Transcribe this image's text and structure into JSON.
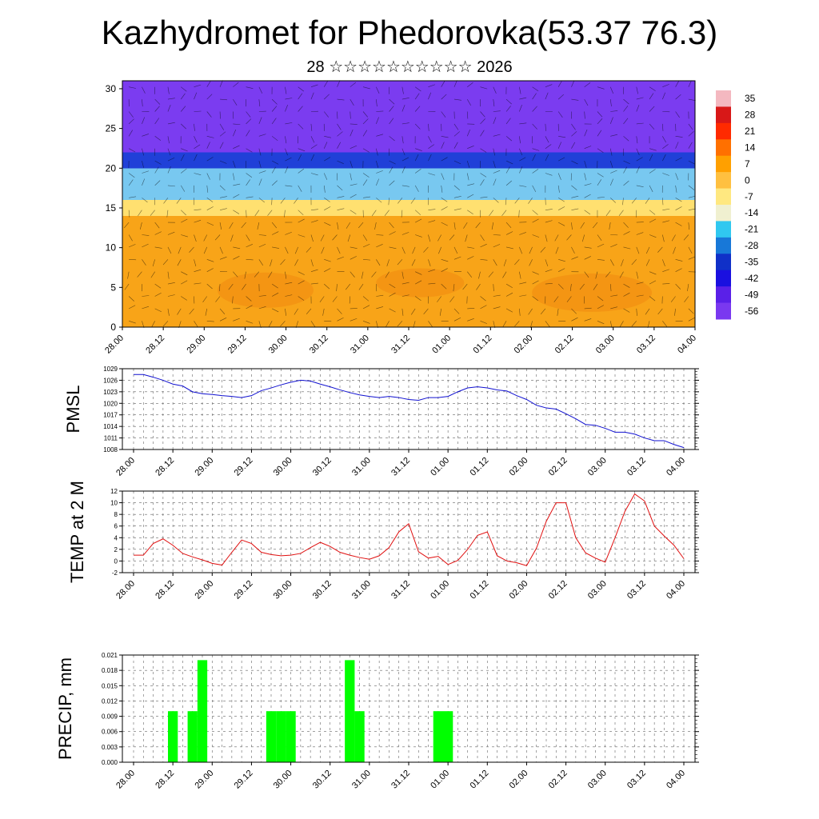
{
  "header": {
    "title": "Kazhydromet for Phedorovka(53.37 76.3)",
    "subtitle": "28 ☆☆☆☆☆☆☆☆☆☆ 2026"
  },
  "chart_data": [
    {
      "type": "heatmap",
      "name": "vertical cross-section",
      "ylim": [
        0,
        31
      ],
      "yticks": [
        0,
        5,
        10,
        15,
        20,
        25,
        30
      ],
      "xticks": [
        "28.00",
        "28.12",
        "29.00",
        "29.12",
        "30.00",
        "30.12",
        "31.00",
        "31.12",
        "01.00",
        "01.12",
        "02.00",
        "02.12",
        "03.00",
        "03.12",
        "04.00"
      ],
      "colorbar_labels": [
        "35",
        "28",
        "21",
        "14",
        "7",
        "0",
        "-7",
        "-14",
        "-21",
        "-28",
        "-35",
        "-42",
        "-49",
        "-56"
      ],
      "colorbar_colors": [
        "#f4b8c0",
        "#d81818",
        "#ff2a00",
        "#ff7000",
        "#ffa000",
        "#ffc040",
        "#ffe880",
        "#f0f0d0",
        "#30c8f0",
        "#1878d8",
        "#1030c8",
        "#1a10e0",
        "#5a20e8",
        "#7a38f0"
      ],
      "layers": [
        {
          "ymin": 0,
          "ymax": 14,
          "color": "#f8a418"
        },
        {
          "ymin": 14,
          "ymax": 16,
          "color": "#ffe070"
        },
        {
          "ymin": 16,
          "ymax": 20,
          "color": "#78c8f0"
        },
        {
          "ymin": 20,
          "ymax": 22,
          "color": "#2040d8"
        },
        {
          "ymin": 22,
          "ymax": 31,
          "color": "#7b3cf0"
        }
      ],
      "grid": true
    },
    {
      "type": "line",
      "name": "PMSL",
      "ylabel": "PMSL",
      "ylim": [
        1008,
        1029
      ],
      "yticks": [
        1008,
        1011,
        1014,
        1017,
        1020,
        1023,
        1026,
        1029
      ],
      "xticks": [
        "28.00",
        "28.12",
        "29.00",
        "29.12",
        "30.00",
        "30.12",
        "31.00",
        "31.12",
        "01.00",
        "01.12",
        "02.00",
        "02.12",
        "03.00",
        "03.12",
        "04.00"
      ],
      "x": [
        0,
        1,
        2,
        3,
        4,
        5,
        6,
        7,
        8,
        9,
        10,
        11,
        12,
        13,
        14,
        15,
        16,
        17,
        18,
        19,
        20,
        21,
        22,
        23,
        24,
        25,
        26,
        27,
        28,
        29,
        30,
        31,
        32,
        33,
        34,
        35,
        36,
        37,
        38,
        39,
        40,
        41,
        42,
        43,
        44,
        45,
        46,
        47,
        48,
        49,
        50,
        51,
        52,
        53,
        54,
        55,
        56
      ],
      "values": [
        1027.5,
        1027.5,
        1026.8,
        1026,
        1025,
        1024.5,
        1023,
        1022.5,
        1022.3,
        1022,
        1021.8,
        1021.5,
        1022,
        1023.3,
        1024,
        1024.8,
        1025.5,
        1026,
        1025.8,
        1025,
        1024.3,
        1023.5,
        1022.8,
        1022.2,
        1021.8,
        1021.5,
        1021.8,
        1021.5,
        1021,
        1020.8,
        1021.5,
        1021.5,
        1021.8,
        1023,
        1024,
        1024.3,
        1024,
        1023.5,
        1023.2,
        1022,
        1021,
        1019.5,
        1018.8,
        1018.5,
        1017.3,
        1016,
        1014.5,
        1014.3,
        1013.5,
        1012.5,
        1012.5,
        1012,
        1011,
        1010.3,
        1010.3,
        1009.3,
        1008.5
      ],
      "color": "#1010d0",
      "grid": true
    },
    {
      "type": "line",
      "name": "TEMP at 2 M",
      "ylabel": "TEMP at 2 M",
      "ylim": [
        -2,
        12
      ],
      "yticks": [
        -2,
        0,
        2,
        4,
        6,
        8,
        10,
        12
      ],
      "xticks": [
        "28.00",
        "28.12",
        "29.00",
        "29.12",
        "30.00",
        "30.12",
        "31.00",
        "31.12",
        "01.00",
        "01.12",
        "02.00",
        "02.12",
        "03.00",
        "03.12",
        "04.00"
      ],
      "x": [
        0,
        1,
        2,
        3,
        4,
        5,
        6,
        7,
        8,
        9,
        10,
        11,
        12,
        13,
        14,
        15,
        16,
        17,
        18,
        19,
        20,
        21,
        22,
        23,
        24,
        25,
        26,
        27,
        28,
        29,
        30,
        31,
        32,
        33,
        34,
        35,
        36,
        37,
        38,
        39,
        40,
        41,
        42,
        43,
        44,
        45,
        46,
        47,
        48,
        49,
        50,
        51,
        52,
        53,
        54,
        55,
        56
      ],
      "values": [
        1,
        1,
        3,
        3.8,
        2.7,
        1.3,
        0.7,
        0.2,
        -0.4,
        -0.7,
        1.5,
        3.6,
        3,
        1.5,
        1.1,
        0.9,
        1,
        1.3,
        2.3,
        3.2,
        2.5,
        1.5,
        1,
        0.6,
        0.3,
        0.9,
        2.3,
        5,
        6.4,
        1.6,
        0.5,
        0.8,
        -0.6,
        0.1,
        2,
        4.4,
        5,
        0.9,
        0,
        -0.3,
        -0.8,
        2.2,
        6.8,
        10,
        10,
        4,
        1.4,
        0.5,
        -0.2,
        4,
        8.5,
        11.5,
        10.3,
        6,
        4.3,
        2.7,
        0.4
      ],
      "color": "#e01010",
      "grid": true
    },
    {
      "type": "bar",
      "name": "PRECIP, mm",
      "ylabel": "PRECIP, mm",
      "ylim": [
        0,
        0.021
      ],
      "yticks": [
        "0.000",
        "0.003",
        "0.006",
        "0.009",
        "0.012",
        "0.015",
        "0.018",
        "0.021"
      ],
      "xticks": [
        "28.00",
        "28.12",
        "29.00",
        "29.12",
        "30.00",
        "30.12",
        "31.00",
        "31.12",
        "01.00",
        "01.12",
        "02.00",
        "02.12",
        "03.00",
        "03.12",
        "04.00"
      ],
      "x": [
        0,
        1,
        2,
        3,
        4,
        5,
        6,
        7,
        8,
        9,
        10,
        11,
        12,
        13,
        14,
        15,
        16,
        17,
        18,
        19,
        20,
        21,
        22,
        23,
        24,
        25,
        26,
        27,
        28,
        29,
        30,
        31,
        32,
        33,
        34,
        35,
        36,
        37,
        38,
        39,
        40,
        41,
        42,
        43,
        44,
        45,
        46,
        47,
        48,
        49,
        50,
        51,
        52,
        53,
        54,
        55,
        56
      ],
      "values": [
        0,
        0,
        0,
        0,
        0.01,
        0,
        0.01,
        0.02,
        0,
        0,
        0,
        0,
        0,
        0,
        0.01,
        0.01,
        0.01,
        0,
        0,
        0,
        0,
        0,
        0.02,
        0.01,
        0,
        0,
        0,
        0,
        0,
        0,
        0,
        0.01,
        0.01,
        0,
        0,
        0,
        0,
        0,
        0,
        0,
        0,
        0,
        0,
        0,
        0,
        0,
        0,
        0,
        0,
        0,
        0,
        0,
        0,
        0,
        0,
        0,
        0
      ],
      "color": "#00ff00",
      "grid": true
    }
  ]
}
